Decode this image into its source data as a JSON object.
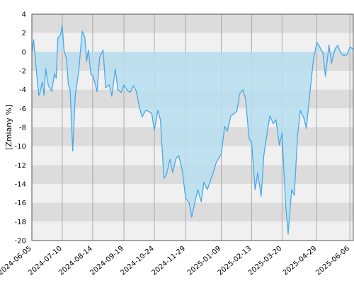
{
  "chart_data": {
    "type": "area",
    "title": "",
    "xlabel": "",
    "ylabel": "[Zmiany %]",
    "ylim": [
      -20,
      4
    ],
    "xlim": [
      "2024-06-05",
      "2025-06-10"
    ],
    "grid": true,
    "yticks": [
      4,
      2,
      0,
      -2,
      -4,
      -6,
      -8,
      -10,
      -12,
      -14,
      -16,
      -18,
      -20
    ],
    "xticks": [
      "2024-06-05",
      "2024-07-10",
      "2024-08-14",
      "2024-09-19",
      "2024-10-24",
      "2024-11-29",
      "2025-01-09",
      "2025-02-13",
      "2025-03-20",
      "2025-04-29",
      "2025-06-06"
    ],
    "colors": {
      "line": "#4aa8e8",
      "fill": "#b7dff0",
      "band_dark": "#dcdcdc",
      "band_light": "#f0f0f0",
      "vgrid": "#aaaaaa",
      "frame": "#555555"
    },
    "series": [
      {
        "x": [
          "2024-06-05",
          "2024-06-07",
          "2024-06-10",
          "2024-06-13",
          "2024-06-14",
          "2024-06-17",
          "2024-06-19",
          "2024-06-21",
          "2024-06-24",
          "2024-06-26",
          "2024-06-28",
          "2024-07-01",
          "2024-07-03",
          "2024-07-05",
          "2024-07-08",
          "2024-07-10",
          "2024-07-12",
          "2024-07-15",
          "2024-07-17",
          "2024-07-19",
          "2024-07-22",
          "2024-07-25",
          "2024-07-29",
          "2024-07-31",
          "2024-08-02",
          "2024-08-05",
          "2024-08-07",
          "2024-08-09",
          "2024-08-12",
          "2024-08-14",
          "2024-08-16",
          "2024-08-19",
          "2024-08-22",
          "2024-08-26",
          "2024-08-29",
          "2024-09-02",
          "2024-09-05",
          "2024-09-09",
          "2024-09-12",
          "2024-09-16",
          "2024-09-19",
          "2024-09-23",
          "2024-09-26",
          "2024-09-30",
          "2024-10-03",
          "2024-10-07",
          "2024-10-10",
          "2024-10-14",
          "2024-10-17",
          "2024-10-21",
          "2024-10-24",
          "2024-10-28",
          "2024-10-31",
          "2024-11-04",
          "2024-11-07",
          "2024-11-11",
          "2024-11-14",
          "2024-11-18",
          "2024-11-21",
          "2024-11-25",
          "2024-11-29",
          "2024-12-03",
          "2024-12-06",
          "2024-12-10",
          "2024-12-13",
          "2024-12-17",
          "2024-12-20",
          "2024-12-24",
          "2024-12-30",
          "2025-01-03",
          "2025-01-09",
          "2025-01-13",
          "2025-01-16",
          "2025-01-20",
          "2025-01-23",
          "2025-01-27",
          "2025-01-30",
          "2025-02-03",
          "2025-02-06",
          "2025-02-10",
          "2025-02-13",
          "2025-02-17",
          "2025-02-20",
          "2025-02-24",
          "2025-02-27",
          "2025-03-03",
          "2025-03-06",
          "2025-03-10",
          "2025-03-13",
          "2025-03-17",
          "2025-03-20",
          "2025-03-24",
          "2025-03-27",
          "2025-03-31",
          "2025-04-03",
          "2025-04-07",
          "2025-04-10",
          "2025-04-14",
          "2025-04-17",
          "2025-04-22",
          "2025-04-25",
          "2025-04-29",
          "2025-05-02",
          "2025-05-06",
          "2025-05-09",
          "2025-05-13",
          "2025-05-16",
          "2025-05-20",
          "2025-05-23",
          "2025-05-27",
          "2025-05-30",
          "2025-06-03",
          "2025-06-06",
          "2025-06-10"
        ],
        "values": [
          0.0,
          1.3,
          -1.8,
          -4.6,
          -4.5,
          -3.2,
          -4.6,
          -1.8,
          -3.6,
          -3.9,
          -4.2,
          -2.3,
          -2.8,
          1.5,
          1.8,
          2.8,
          0.2,
          -0.8,
          -3.5,
          -4.0,
          -10.5,
          -4.5,
          -2.0,
          0.2,
          2.2,
          1.6,
          -1.0,
          0.2,
          -2.4,
          -2.5,
          -3.1,
          -4.2,
          -0.6,
          0.2,
          -3.8,
          -3.5,
          -4.7,
          -1.8,
          -4.0,
          -4.3,
          -3.5,
          -4.1,
          -4.3,
          -3.6,
          -4.1,
          -6.0,
          -6.9,
          -6.2,
          -6.3,
          -6.5,
          -8.3,
          -6.2,
          -7.2,
          -13.4,
          -13.0,
          -11.4,
          -12.8,
          -11.3,
          -11.0,
          -12.5,
          -15.5,
          -16.0,
          -17.5,
          -15.8,
          -14.6,
          -15.9,
          -13.8,
          -14.6,
          -13.0,
          -11.8,
          -10.8,
          -7.9,
          -8.4,
          -6.8,
          -6.6,
          -6.3,
          -4.5,
          -4.0,
          -5.0,
          -9.2,
          -9.6,
          -14.6,
          -12.8,
          -15.3,
          -11.0,
          -8.5,
          -6.8,
          -7.6,
          -7.2,
          -9.9,
          -8.6,
          -16.1,
          -19.3,
          -14.6,
          -15.2,
          -8.7,
          -6.2,
          -7.0,
          -8.1,
          -3.5,
          -0.9,
          1.0,
          0.6,
          -0.1,
          -2.6,
          0.7,
          -1.2,
          0.3,
          0.7,
          -0.2,
          -0.4,
          -0.3,
          0.5,
          0.3
        ]
      }
    ]
  }
}
